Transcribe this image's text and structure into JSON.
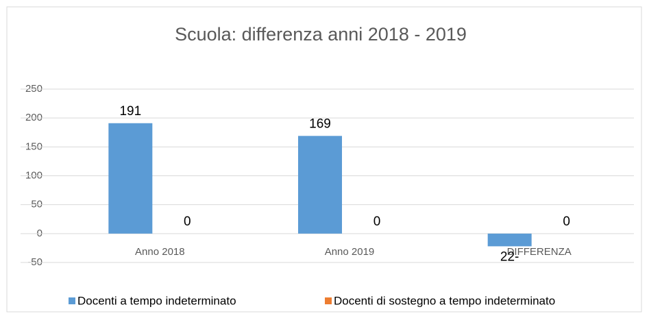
{
  "chart_data": {
    "type": "bar",
    "title": "Scuola: differenza anni 2018 - 2019",
    "categories": [
      "Anno 2018",
      "Anno 2019",
      "DIFFERENZA"
    ],
    "series": [
      {
        "name": "Docenti a tempo indeterminato",
        "color": "#5b9bd5",
        "values": [
          191,
          169,
          -22
        ],
        "value_labels": [
          "191",
          "169",
          "22-"
        ]
      },
      {
        "name": "Docenti di sostegno a tempo indeterminato",
        "color": "#ed7d31",
        "values": [
          0,
          0,
          0
        ]
      }
    ],
    "ylim": [
      -50,
      250
    ],
    "yticks": [
      -50,
      0,
      50,
      100,
      150,
      200,
      250
    ],
    "grid": true,
    "legend": "bottom"
  }
}
